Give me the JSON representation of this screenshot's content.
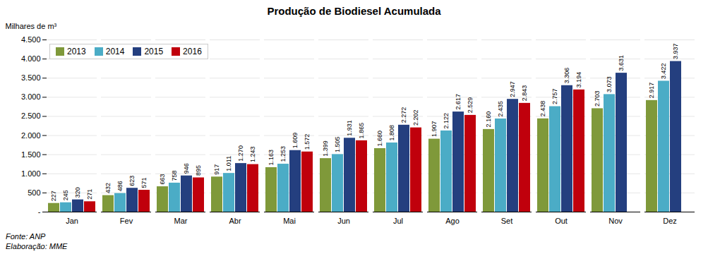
{
  "chart_data": {
    "type": "bar",
    "title": "Produção de Biodiesel Acumulada",
    "ylabel": "Milhares de m³",
    "annotations": [
      "Fonte: ANP",
      "Elaboração: MME"
    ],
    "categories": [
      "Jan",
      "Fev",
      "Mar",
      "Abr",
      "Mai",
      "Jun",
      "Jul",
      "Ago",
      "Set",
      "Out",
      "Nov",
      "Dez"
    ],
    "series": [
      {
        "name": "2013",
        "color": "#7f993a",
        "values": [
          227,
          432,
          663,
          917,
          1163,
          1399,
          1660,
          1907,
          2160,
          2438,
          2703,
          2917
        ],
        "value_labels": [
          "227",
          "432",
          "663",
          "917",
          "1.163",
          "1.399",
          "1.660",
          "1.907",
          "2.160",
          "2.438",
          "2.703",
          "2.917"
        ]
      },
      {
        "name": "2014",
        "color": "#4bacc6",
        "values": [
          245,
          486,
          758,
          1011,
          1253,
          1505,
          1808,
          2122,
          2435,
          2757,
          3073,
          3422
        ],
        "value_labels": [
          "245",
          "486",
          "758",
          "1.011",
          "1.253",
          "1.505",
          "1.808",
          "2.122",
          "2.435",
          "2.757",
          "3.073",
          "3.422"
        ]
      },
      {
        "name": "2015",
        "color": "#243f7f",
        "values": [
          320,
          623,
          946,
          1270,
          1609,
          1931,
          2272,
          2617,
          2947,
          3306,
          3631,
          3937
        ],
        "value_labels": [
          "320",
          "623",
          "946",
          "1.270",
          "1.609",
          "1.931",
          "2.272",
          "2.617",
          "2.947",
          "3.306",
          "3.631",
          "3.937"
        ]
      },
      {
        "name": "2016",
        "color": "#c0000c",
        "values": [
          271,
          571,
          895,
          1243,
          1572,
          1865,
          2202,
          2529,
          2843,
          3194,
          null,
          null
        ],
        "value_labels": [
          "271",
          "571",
          "895",
          "1.243",
          "1.572",
          "1.865",
          "2.202",
          "2.529",
          "2.843",
          "3.194",
          null,
          null
        ]
      }
    ],
    "ylim": [
      0,
      4500
    ],
    "yticks": [
      {
        "value": 0,
        "label": "-"
      },
      500,
      {
        "value": 1000,
        "label": "1.000"
      },
      {
        "value": 1500,
        "label": "1.500"
      },
      {
        "value": 2000,
        "label": "2.000"
      },
      {
        "value": 2500,
        "label": "2.500"
      },
      {
        "value": 3000,
        "label": "3.000"
      },
      {
        "value": 3500,
        "label": "3.500"
      },
      {
        "value": 4000,
        "label": "4.000"
      },
      {
        "value": 4500,
        "label": "4.500"
      }
    ],
    "grid": true,
    "legend": "upper left",
    "data_labels": true
  }
}
